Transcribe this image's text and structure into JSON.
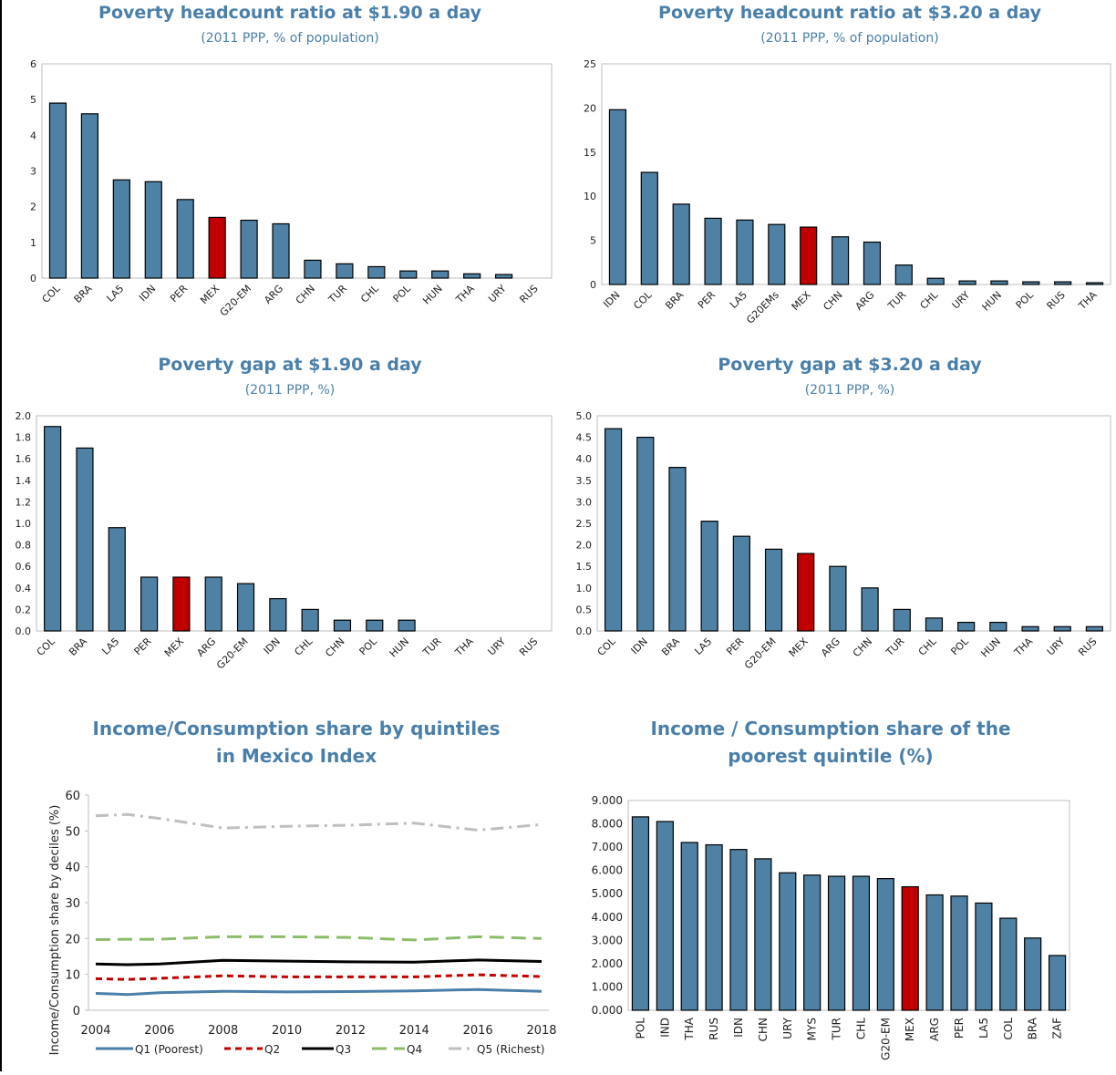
{
  "colors": {
    "bar": "#4E81A4",
    "bar_stroke": "#000000",
    "highlight": "#C00000",
    "title": "#4A7FAA",
    "q1": "#4A7FAA",
    "q2": "#C00000",
    "q3": "#000000",
    "q4": "#8CBC6A",
    "q5": "#BFBFBF"
  },
  "chart_data": [
    {
      "id": "c1",
      "type": "bar",
      "title": "Poverty headcount ratio at $1.90 a day",
      "subtitle": "(2011 PPP, % of population)",
      "categories": [
        "COL",
        "BRA",
        "LA5",
        "IDN",
        "PER",
        "MEX",
        "G20-EM",
        "ARG",
        "CHN",
        "TUR",
        "CHL",
        "POL",
        "HUN",
        "THA",
        "URY",
        "RUS"
      ],
      "values": [
        4.9,
        4.6,
        2.75,
        2.7,
        2.2,
        1.7,
        1.62,
        1.52,
        0.5,
        0.4,
        0.32,
        0.2,
        0.2,
        0.12,
        0.1,
        0
      ],
      "highlight": "MEX",
      "ylim": [
        0,
        6
      ],
      "yticks": [
        "0",
        "1",
        "2",
        "3",
        "4",
        "5",
        "6"
      ],
      "grid": false
    },
    {
      "id": "c2",
      "type": "bar",
      "title": "Poverty headcount ratio at $3.20 a day",
      "subtitle": "(2011 PPP, % of population)",
      "categories": [
        "IDN",
        "COL",
        "BRA",
        "PER",
        "LA5",
        "G20EMs",
        "MEX",
        "CHN",
        "ARG",
        "TUR",
        "CHL",
        "URY",
        "HUN",
        "POL",
        "RUS",
        "THA"
      ],
      "values": [
        19.8,
        12.7,
        9.1,
        7.5,
        7.3,
        6.8,
        6.5,
        5.4,
        4.8,
        2.2,
        0.7,
        0.4,
        0.4,
        0.3,
        0.3,
        0.2
      ],
      "highlight": "MEX",
      "ylim": [
        0,
        25
      ],
      "yticks": [
        "0",
        "5",
        "10",
        "15",
        "20",
        "25"
      ],
      "grid": false
    },
    {
      "id": "c3",
      "type": "bar",
      "title": "Poverty gap at $1.90 a day",
      "subtitle": "(2011 PPP, %)",
      "categories": [
        "COL",
        "BRA",
        "LA5",
        "PER",
        "MEX",
        "ARG",
        "G20-EM",
        "IDN",
        "CHL",
        "CHN",
        "POL",
        "HUN",
        "TUR",
        "THA",
        "URY",
        "RUS"
      ],
      "values": [
        1.9,
        1.7,
        0.96,
        0.5,
        0.5,
        0.5,
        0.44,
        0.3,
        0.2,
        0.1,
        0.1,
        0.1,
        0,
        0,
        0,
        0
      ],
      "highlight": "MEX",
      "ylim": [
        0,
        2.0
      ],
      "yticks": [
        "0.0",
        "0.2",
        "0.4",
        "0.6",
        "0.8",
        "1.0",
        "1.2",
        "1.4",
        "1.6",
        "1.8",
        "2.0"
      ],
      "grid": false
    },
    {
      "id": "c4",
      "type": "bar",
      "title": "Poverty gap at $3.20 a day",
      "subtitle": "(2011 PPP, %)",
      "categories": [
        "COL",
        "IDN",
        "BRA",
        "LA5",
        "PER",
        "G20-EM",
        "MEX",
        "ARG",
        "CHN",
        "TUR",
        "CHL",
        "POL",
        "HUN",
        "THA",
        "URY",
        "RUS"
      ],
      "values": [
        4.7,
        4.5,
        3.8,
        2.55,
        2.2,
        1.9,
        1.8,
        1.5,
        1.0,
        0.5,
        0.3,
        0.2,
        0.2,
        0.1,
        0.1,
        0.1
      ],
      "highlight": "MEX",
      "ylim": [
        0,
        5.0
      ],
      "yticks": [
        "0.0",
        "0.5",
        "1.0",
        "1.5",
        "2.0",
        "2.5",
        "3.0",
        "3.5",
        "4.0",
        "4.5",
        "5.0"
      ],
      "grid": false
    },
    {
      "id": "c5",
      "type": "line",
      "title_lines": [
        "Income/Consumption share by quintiles",
        "in Mexico Index"
      ],
      "ylabel": "Income/Consumption share by deciles (%)",
      "x": [
        2004,
        2005,
        2006,
        2008,
        2010,
        2012,
        2014,
        2016,
        2018
      ],
      "xticks": [
        "2004",
        "2006",
        "2008",
        "2010",
        "2012",
        "2014",
        "2016",
        "2018"
      ],
      "ylim": [
        0,
        60
      ],
      "yticks": [
        "0",
        "10",
        "20",
        "30",
        "40",
        "50",
        "60"
      ],
      "series": [
        {
          "name": "Q1 (Poorest)",
          "style": "solid",
          "values": [
            4.7,
            4.4,
            4.9,
            5.3,
            5.1,
            5.2,
            5.4,
            5.8,
            5.3
          ]
        },
        {
          "name": "Q2",
          "style": "dashed",
          "values": [
            8.8,
            8.6,
            8.9,
            9.6,
            9.3,
            9.3,
            9.3,
            9.9,
            9.4
          ]
        },
        {
          "name": "Q3",
          "style": "solid",
          "values": [
            12.9,
            12.7,
            12.9,
            13.9,
            13.7,
            13.5,
            13.4,
            14.0,
            13.6
          ]
        },
        {
          "name": "Q4",
          "style": "longdash",
          "values": [
            19.7,
            19.8,
            19.8,
            20.5,
            20.5,
            20.3,
            19.6,
            20.5,
            20.0
          ]
        },
        {
          "name": "Q5 (Richest)",
          "style": "dashdot",
          "values": [
            54.2,
            54.6,
            53.5,
            50.8,
            51.3,
            51.6,
            52.2,
            50.2,
            51.8
          ]
        }
      ],
      "legend": "bottom"
    },
    {
      "id": "c6",
      "type": "bar",
      "title_lines": [
        "Income / Consumption share of the",
        "poorest quintile (%)"
      ],
      "categories": [
        "POL",
        "IND",
        "THA",
        "RUS",
        "IDN",
        "CHN",
        "URY",
        "MYS",
        "TUR",
        "CHL",
        "G20-EM",
        "MEX",
        "ARG",
        "PER",
        "LA5",
        "COL",
        "BRA",
        "ZAF"
      ],
      "values": [
        8.3,
        8.1,
        7.2,
        7.1,
        6.9,
        6.5,
        5.9,
        5.8,
        5.75,
        5.75,
        5.65,
        5.3,
        4.95,
        4.9,
        4.6,
        3.95,
        3.1,
        2.35
      ],
      "highlight": "MEX",
      "ylim": [
        0,
        9
      ],
      "yticks": [
        "0.000",
        "1.000",
        "2.000",
        "3.000",
        "4.000",
        "5.000",
        "6.000",
        "7.000",
        "8.000",
        "9.000"
      ],
      "grid": false
    }
  ]
}
